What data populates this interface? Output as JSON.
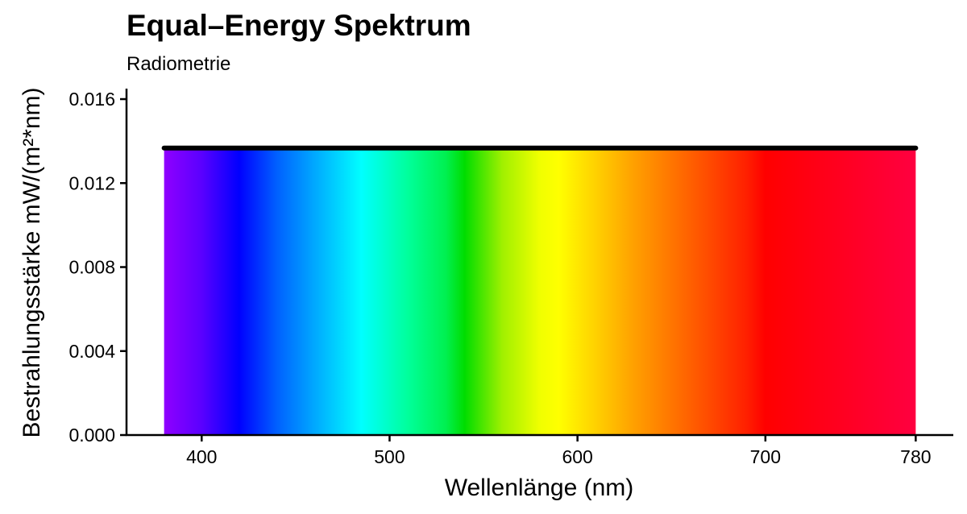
{
  "chart_data": {
    "type": "area",
    "title": "Equal–Energy Spektrum",
    "subtitle": "Radiometrie",
    "xlabel": "Wellenlänge (nm)",
    "ylabel": "Bestrahlungsstärke  mW/(m²*nm)",
    "xlim": [
      360,
      800
    ],
    "ylim": [
      0,
      0.0165
    ],
    "xticks": [
      {
        "value": 400,
        "label": "400"
      },
      {
        "value": 500,
        "label": "500"
      },
      {
        "value": 600,
        "label": "600"
      },
      {
        "value": 700,
        "label": "700"
      },
      {
        "value": 780,
        "label": "780"
      }
    ],
    "yticks": [
      {
        "value": 0.0,
        "label": "0.000"
      },
      {
        "value": 0.004,
        "label": "0.004"
      },
      {
        "value": 0.008,
        "label": "0.008"
      },
      {
        "value": 0.012,
        "label": "0.012"
      },
      {
        "value": 0.016,
        "label": "0.016"
      }
    ],
    "series": [
      {
        "x": [
          380,
          780
        ],
        "y": [
          0.01367,
          0.01367
        ]
      }
    ],
    "fill": "visible-spectrum-gradient",
    "line_color": "#000000",
    "spectrum_colors": [
      {
        "wl": 380,
        "color": "#8f00ff"
      },
      {
        "wl": 400,
        "color": "#5a00ff"
      },
      {
        "wl": 420,
        "color": "#0000ff"
      },
      {
        "wl": 440,
        "color": "#0060ff"
      },
      {
        "wl": 460,
        "color": "#00a8ff"
      },
      {
        "wl": 485,
        "color": "#00ffff"
      },
      {
        "wl": 510,
        "color": "#00ff9a"
      },
      {
        "wl": 530,
        "color": "#00f050"
      },
      {
        "wl": 540,
        "color": "#00dd00"
      },
      {
        "wl": 560,
        "color": "#a0f000"
      },
      {
        "wl": 580,
        "color": "#f0ff00"
      },
      {
        "wl": 590,
        "color": "#ffff00"
      },
      {
        "wl": 610,
        "color": "#ffd000"
      },
      {
        "wl": 630,
        "color": "#ffa000"
      },
      {
        "wl": 660,
        "color": "#ff6000"
      },
      {
        "wl": 690,
        "color": "#ff2000"
      },
      {
        "wl": 700,
        "color": "#ff0000"
      },
      {
        "wl": 780,
        "color": "#ff0040"
      }
    ]
  }
}
